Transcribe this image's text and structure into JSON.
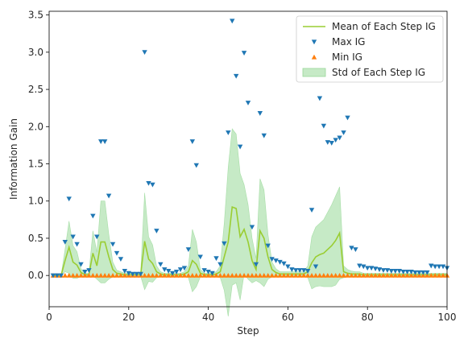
{
  "chart_data": {
    "type": "line",
    "xlabel": "Step",
    "ylabel": "Information Gain",
    "xlim": [
      0,
      100
    ],
    "ylim": [
      -0.42,
      3.55
    ],
    "xticks": [
      "0",
      "20",
      "40",
      "60",
      "80",
      "100"
    ],
    "xtick_values": [
      0,
      20,
      40,
      60,
      80,
      100
    ],
    "yticks": [
      "0.0",
      "0.5",
      "1.0",
      "1.5",
      "2.0",
      "2.5",
      "3.0",
      "3.5"
    ],
    "ytick_values": [
      0.0,
      0.5,
      1.0,
      1.5,
      2.0,
      2.5,
      3.0,
      3.5
    ],
    "grid": false,
    "legend_position": "upper-right",
    "colors": {
      "mean": "#9acd32",
      "std_fill": "#98d898",
      "max": "#1f77b4",
      "min": "#ff7f0e"
    },
    "x": [
      1,
      2,
      3,
      4,
      5,
      6,
      7,
      8,
      9,
      10,
      11,
      12,
      13,
      14,
      15,
      16,
      17,
      18,
      19,
      20,
      21,
      22,
      23,
      24,
      25,
      26,
      27,
      28,
      29,
      30,
      31,
      32,
      33,
      34,
      35,
      36,
      37,
      38,
      39,
      40,
      41,
      42,
      43,
      44,
      45,
      46,
      47,
      48,
      49,
      50,
      51,
      52,
      53,
      54,
      55,
      56,
      57,
      58,
      59,
      60,
      61,
      62,
      63,
      64,
      65,
      66,
      67,
      68,
      69,
      70,
      71,
      72,
      73,
      74,
      75,
      76,
      77,
      78,
      79,
      80,
      81,
      82,
      83,
      84,
      85,
      86,
      87,
      88,
      89,
      90,
      91,
      92,
      93,
      94,
      95,
      96,
      97,
      98,
      99,
      100
    ],
    "series": [
      {
        "name": "Mean of Each Step IG",
        "kind": "line",
        "values": [
          0,
          0,
          0,
          0.2,
          0.38,
          0.18,
          0.14,
          0.04,
          0.01,
          0.01,
          0.3,
          0.13,
          0.45,
          0.45,
          0.25,
          0.08,
          0.03,
          0.02,
          0.01,
          0.01,
          0.01,
          0.01,
          0.01,
          0.46,
          0.22,
          0.16,
          0.05,
          0.02,
          0.01,
          0.01,
          0.01,
          0.01,
          0.01,
          0.02,
          0.05,
          0.2,
          0.15,
          0.03,
          0.01,
          0.01,
          0.01,
          0.02,
          0.05,
          0.25,
          0.45,
          0.92,
          0.9,
          0.52,
          0.62,
          0.45,
          0.2,
          0.08,
          0.6,
          0.5,
          0.25,
          0.08,
          0.04,
          0.02,
          0.02,
          0.02,
          0.02,
          0.02,
          0.02,
          0.02,
          0.05,
          0.17,
          0.25,
          0.28,
          0.3,
          0.35,
          0.4,
          0.47,
          0.57,
          0.05,
          0.03,
          0.02,
          0.02,
          0.02,
          0.01,
          0.01,
          0.01,
          0.01,
          0.01,
          0.01,
          0.01,
          0.01,
          0.01,
          0.01,
          0.01,
          0.01,
          0.01,
          0.01,
          0.01,
          0.01,
          0.01,
          0.01,
          0.01,
          0.01,
          0.01,
          0.01
        ]
      },
      {
        "name": "Std of Each Step IG",
        "kind": "band",
        "values": [
          0,
          0,
          0,
          0.15,
          0.35,
          0.22,
          0.18,
          0.05,
          0.02,
          0.02,
          0.3,
          0.18,
          0.55,
          0.55,
          0.3,
          0.1,
          0.04,
          0.03,
          0.02,
          0.02,
          0.02,
          0.02,
          0.02,
          0.65,
          0.3,
          0.25,
          0.08,
          0.03,
          0.02,
          0.02,
          0.02,
          0.02,
          0.02,
          0.03,
          0.08,
          0.42,
          0.3,
          0.05,
          0.02,
          0.02,
          0.02,
          0.03,
          0.08,
          0.45,
          1.0,
          1.05,
          1.0,
          0.85,
          0.6,
          0.5,
          0.3,
          0.15,
          0.7,
          0.65,
          0.3,
          0.1,
          0.05,
          0.03,
          0.03,
          0.03,
          0.03,
          0.03,
          0.03,
          0.03,
          0.08,
          0.35,
          0.4,
          0.42,
          0.45,
          0.5,
          0.55,
          0.6,
          0.62,
          0.08,
          0.05,
          0.04,
          0.03,
          0.03,
          0.02,
          0.02,
          0.02,
          0.02,
          0.02,
          0.02,
          0.02,
          0.02,
          0.02,
          0.02,
          0.02,
          0.02,
          0.02,
          0.02,
          0.02,
          0.02,
          0.02,
          0.02,
          0.02,
          0.02,
          0.02,
          0.02
        ]
      },
      {
        "name": "Max IG",
        "kind": "marker-down",
        "values": [
          0,
          0,
          0,
          0.45,
          1.03,
          0.52,
          0.42,
          0.15,
          0.05,
          0.07,
          0.8,
          0.52,
          1.8,
          1.8,
          1.07,
          0.42,
          0.3,
          0.22,
          0.06,
          0.03,
          0.02,
          0.02,
          0.02,
          3.0,
          1.24,
          1.22,
          0.6,
          0.15,
          0.08,
          0.06,
          0.03,
          0.05,
          0.08,
          0.1,
          0.35,
          1.8,
          1.48,
          0.25,
          0.07,
          0.05,
          0.03,
          0.23,
          0.15,
          0.43,
          1.92,
          3.42,
          2.68,
          1.73,
          2.99,
          2.32,
          0.65,
          0.15,
          2.18,
          1.88,
          0.4,
          0.22,
          0.2,
          0.18,
          0.16,
          0.12,
          0.08,
          0.07,
          0.07,
          0.07,
          0.06,
          0.88,
          0.12,
          2.38,
          2.01,
          1.79,
          1.78,
          1.82,
          1.85,
          1.92,
          2.12,
          0.37,
          0.35,
          0.13,
          0.12,
          0.1,
          0.1,
          0.09,
          0.08,
          0.07,
          0.07,
          0.06,
          0.06,
          0.06,
          0.05,
          0.05,
          0.05,
          0.04,
          0.04,
          0.04,
          0.04,
          0.13,
          0.12,
          0.12,
          0.12,
          0.1
        ]
      },
      {
        "name": "Min IG",
        "kind": "marker-up",
        "values": [
          0,
          0,
          0,
          0,
          0,
          0,
          0,
          0,
          0,
          0,
          0,
          0,
          0,
          0,
          0,
          0,
          0,
          0,
          0,
          0,
          0,
          0,
          0,
          0,
          0,
          0,
          0,
          0,
          0,
          0,
          0,
          0,
          0,
          0,
          0,
          0,
          0,
          0,
          0,
          0,
          0,
          0,
          0,
          0,
          0,
          0,
          0,
          0,
          0,
          0,
          0,
          0,
          0,
          0,
          0,
          0,
          0,
          0,
          0,
          0,
          0,
          0,
          0,
          0,
          0,
          0,
          0,
          0,
          0,
          0,
          0,
          0,
          0,
          0,
          0,
          0,
          0,
          0,
          0,
          0,
          0,
          0,
          0,
          0,
          0,
          0,
          0,
          0,
          0,
          0,
          0,
          0,
          0,
          0,
          0,
          0,
          0,
          0,
          0,
          0
        ]
      }
    ],
    "legend": [
      {
        "label": "Mean of Each Step IG",
        "kind": "line"
      },
      {
        "label": "Max IG",
        "kind": "marker-down"
      },
      {
        "label": "Min IG",
        "kind": "marker-up"
      },
      {
        "label": "Std of Each Step IG",
        "kind": "band"
      }
    ]
  }
}
